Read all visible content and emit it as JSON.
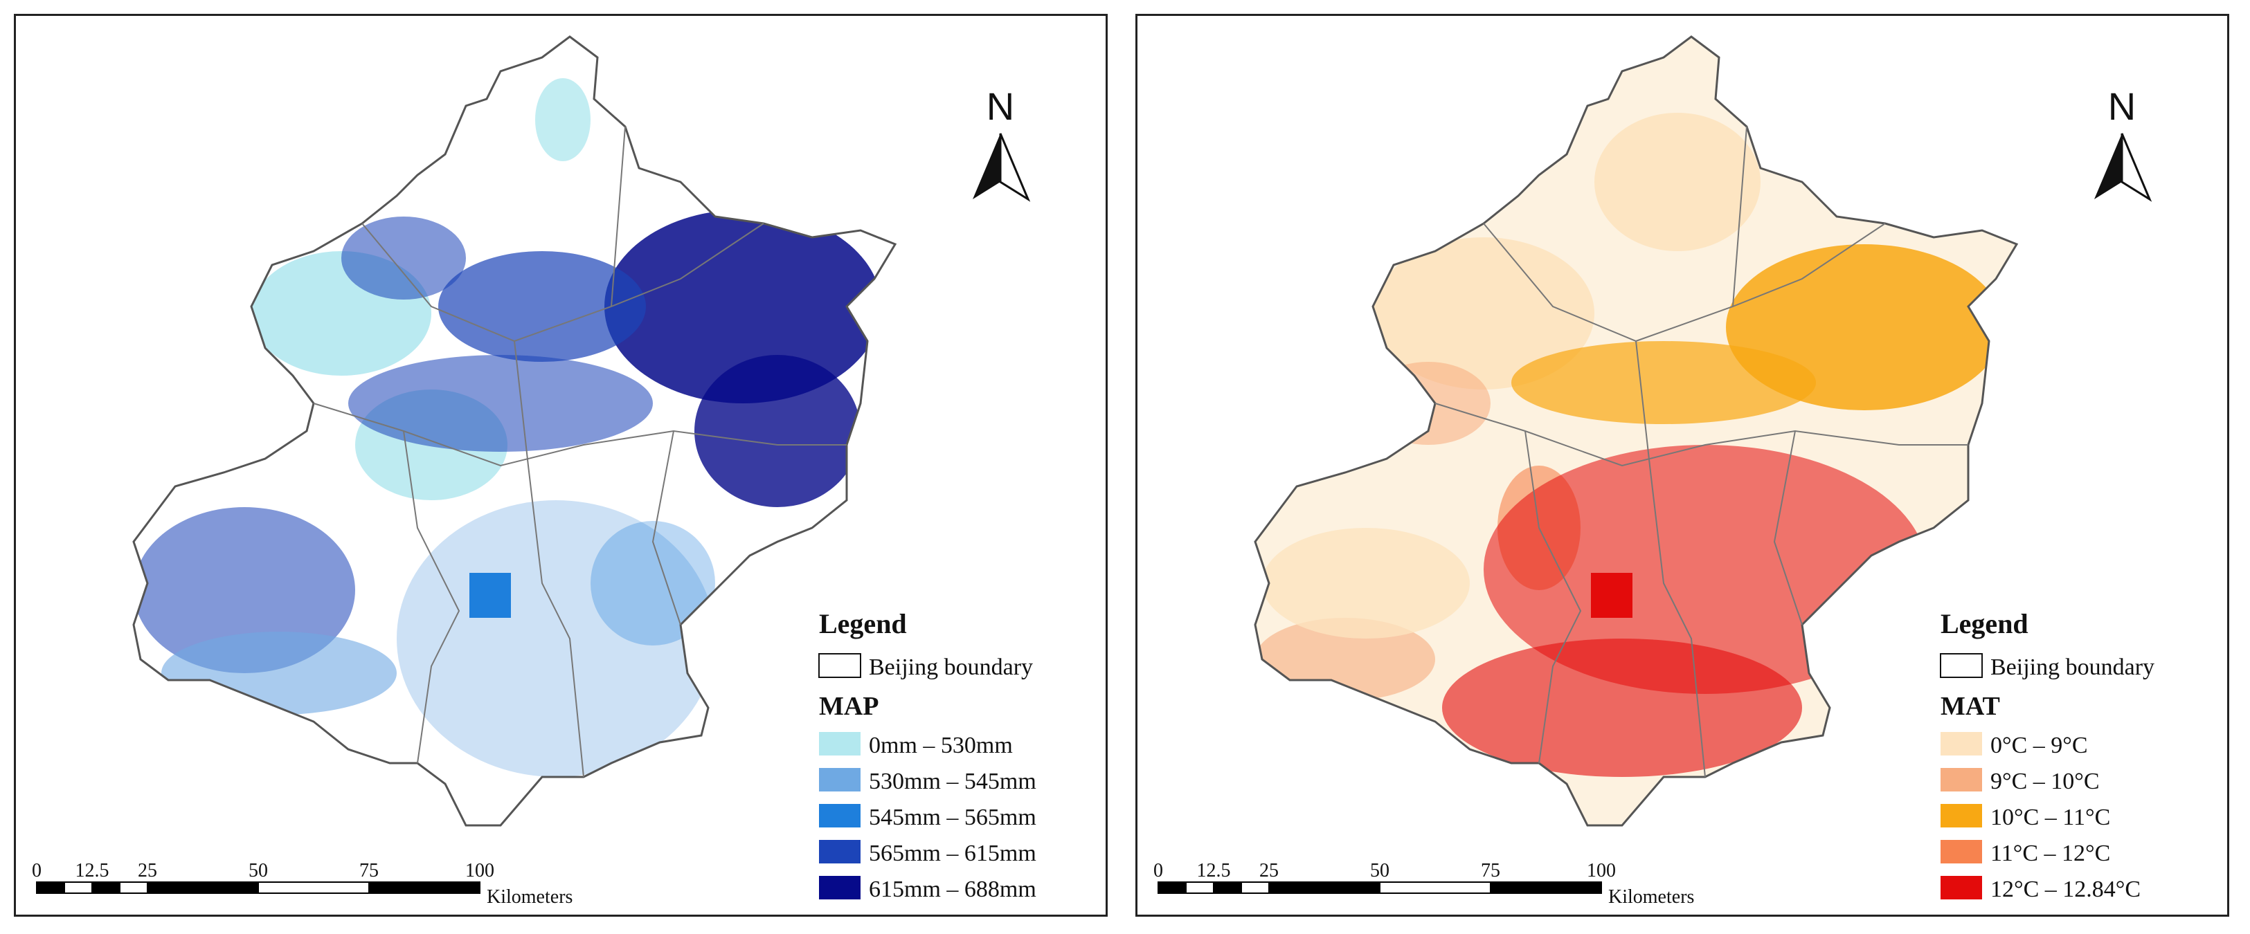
{
  "panels": [
    {
      "id": "map",
      "north_label": "N",
      "legend": {
        "title": "Legend",
        "boundary_label": "Beijing boundary",
        "variable": "MAP",
        "classes": [
          {
            "label": "0mm – 530mm",
            "color": "#b3e8ef"
          },
          {
            "label": "530mm – 545mm",
            "color": "#6fa9e3"
          },
          {
            "label": "545mm – 565mm",
            "color": "#1e7fdc"
          },
          {
            "label": "565mm – 615mm",
            "color": "#1c44b8"
          },
          {
            "label": "615mm – 688mm",
            "color": "#060a8a"
          }
        ]
      },
      "scale_bar": {
        "ticks": [
          "0",
          "12.5",
          "25",
          "50",
          "75",
          "100"
        ],
        "unit": "Kilometers"
      }
    },
    {
      "id": "mat",
      "north_label": "N",
      "legend": {
        "title": "Legend",
        "boundary_label": "Beijing boundary",
        "variable": "MAT",
        "classes": [
          {
            "label": "0°C – 9°C",
            "color": "#fde3bf"
          },
          {
            "label": "9°C – 10°C",
            "color": "#f7ad80"
          },
          {
            "label": "10°C – 11°C",
            "color": "#f8a813"
          },
          {
            "label": "11°C – 12°C",
            "color": "#f7834f"
          },
          {
            "label": "12°C – 12.84°C",
            "color": "#e30b0b"
          }
        ]
      },
      "scale_bar": {
        "ticks": [
          "0",
          "12.5",
          "25",
          "50",
          "75",
          "100"
        ],
        "unit": "Kilometers"
      }
    }
  ]
}
